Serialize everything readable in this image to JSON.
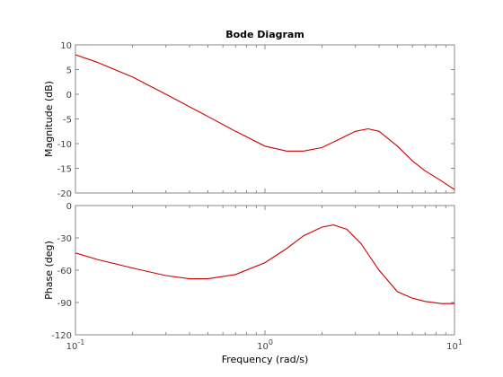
{
  "chart_data": {
    "type": "line",
    "title": "Bode Diagram",
    "xlabel": "Frequency  (rad/s)",
    "x_scale": "log",
    "xlim": [
      0.1,
      10
    ],
    "x_ticks": [
      {
        "value": 0.1,
        "base": "10",
        "exp": "-1"
      },
      {
        "value": 1,
        "base": "10",
        "exp": "0"
      },
      {
        "value": 10,
        "base": "10",
        "exp": "1"
      }
    ],
    "series_color": "#cc0000",
    "panels": [
      {
        "name": "magnitude",
        "ylabel": "Magnitude (dB)",
        "ylim": [
          -20,
          10
        ],
        "y_ticks": [
          10,
          5,
          0,
          -5,
          -10,
          -15,
          -20
        ],
        "x": [
          0.1,
          0.13,
          0.2,
          0.3,
          0.5,
          0.7,
          1.0,
          1.3,
          1.6,
          2.0,
          2.5,
          3.0,
          3.5,
          4.0,
          5.0,
          6.0,
          7.0,
          8.5,
          10.0
        ],
        "y": [
          8.0,
          6.5,
          3.5,
          0.0,
          -4.5,
          -7.5,
          -10.5,
          -11.5,
          -11.5,
          -10.8,
          -9.0,
          -7.5,
          -7.0,
          -7.5,
          -10.5,
          -13.5,
          -15.5,
          -17.5,
          -19.3
        ]
      },
      {
        "name": "phase",
        "ylabel": "Phase (deg)",
        "ylim": [
          -120,
          0
        ],
        "y_ticks": [
          0,
          -30,
          -60,
          -90,
          -120
        ],
        "x": [
          0.1,
          0.13,
          0.2,
          0.3,
          0.4,
          0.5,
          0.7,
          1.0,
          1.3,
          1.6,
          2.0,
          2.3,
          2.7,
          3.2,
          4.0,
          5.0,
          6.0,
          7.0,
          8.5,
          10.0
        ],
        "y": [
          -44,
          -50,
          -58,
          -65,
          -68,
          -68,
          -64,
          -53,
          -40,
          -28,
          -20,
          -18,
          -22,
          -35,
          -60,
          -80,
          -86,
          -89,
          -91,
          -91
        ]
      }
    ]
  }
}
